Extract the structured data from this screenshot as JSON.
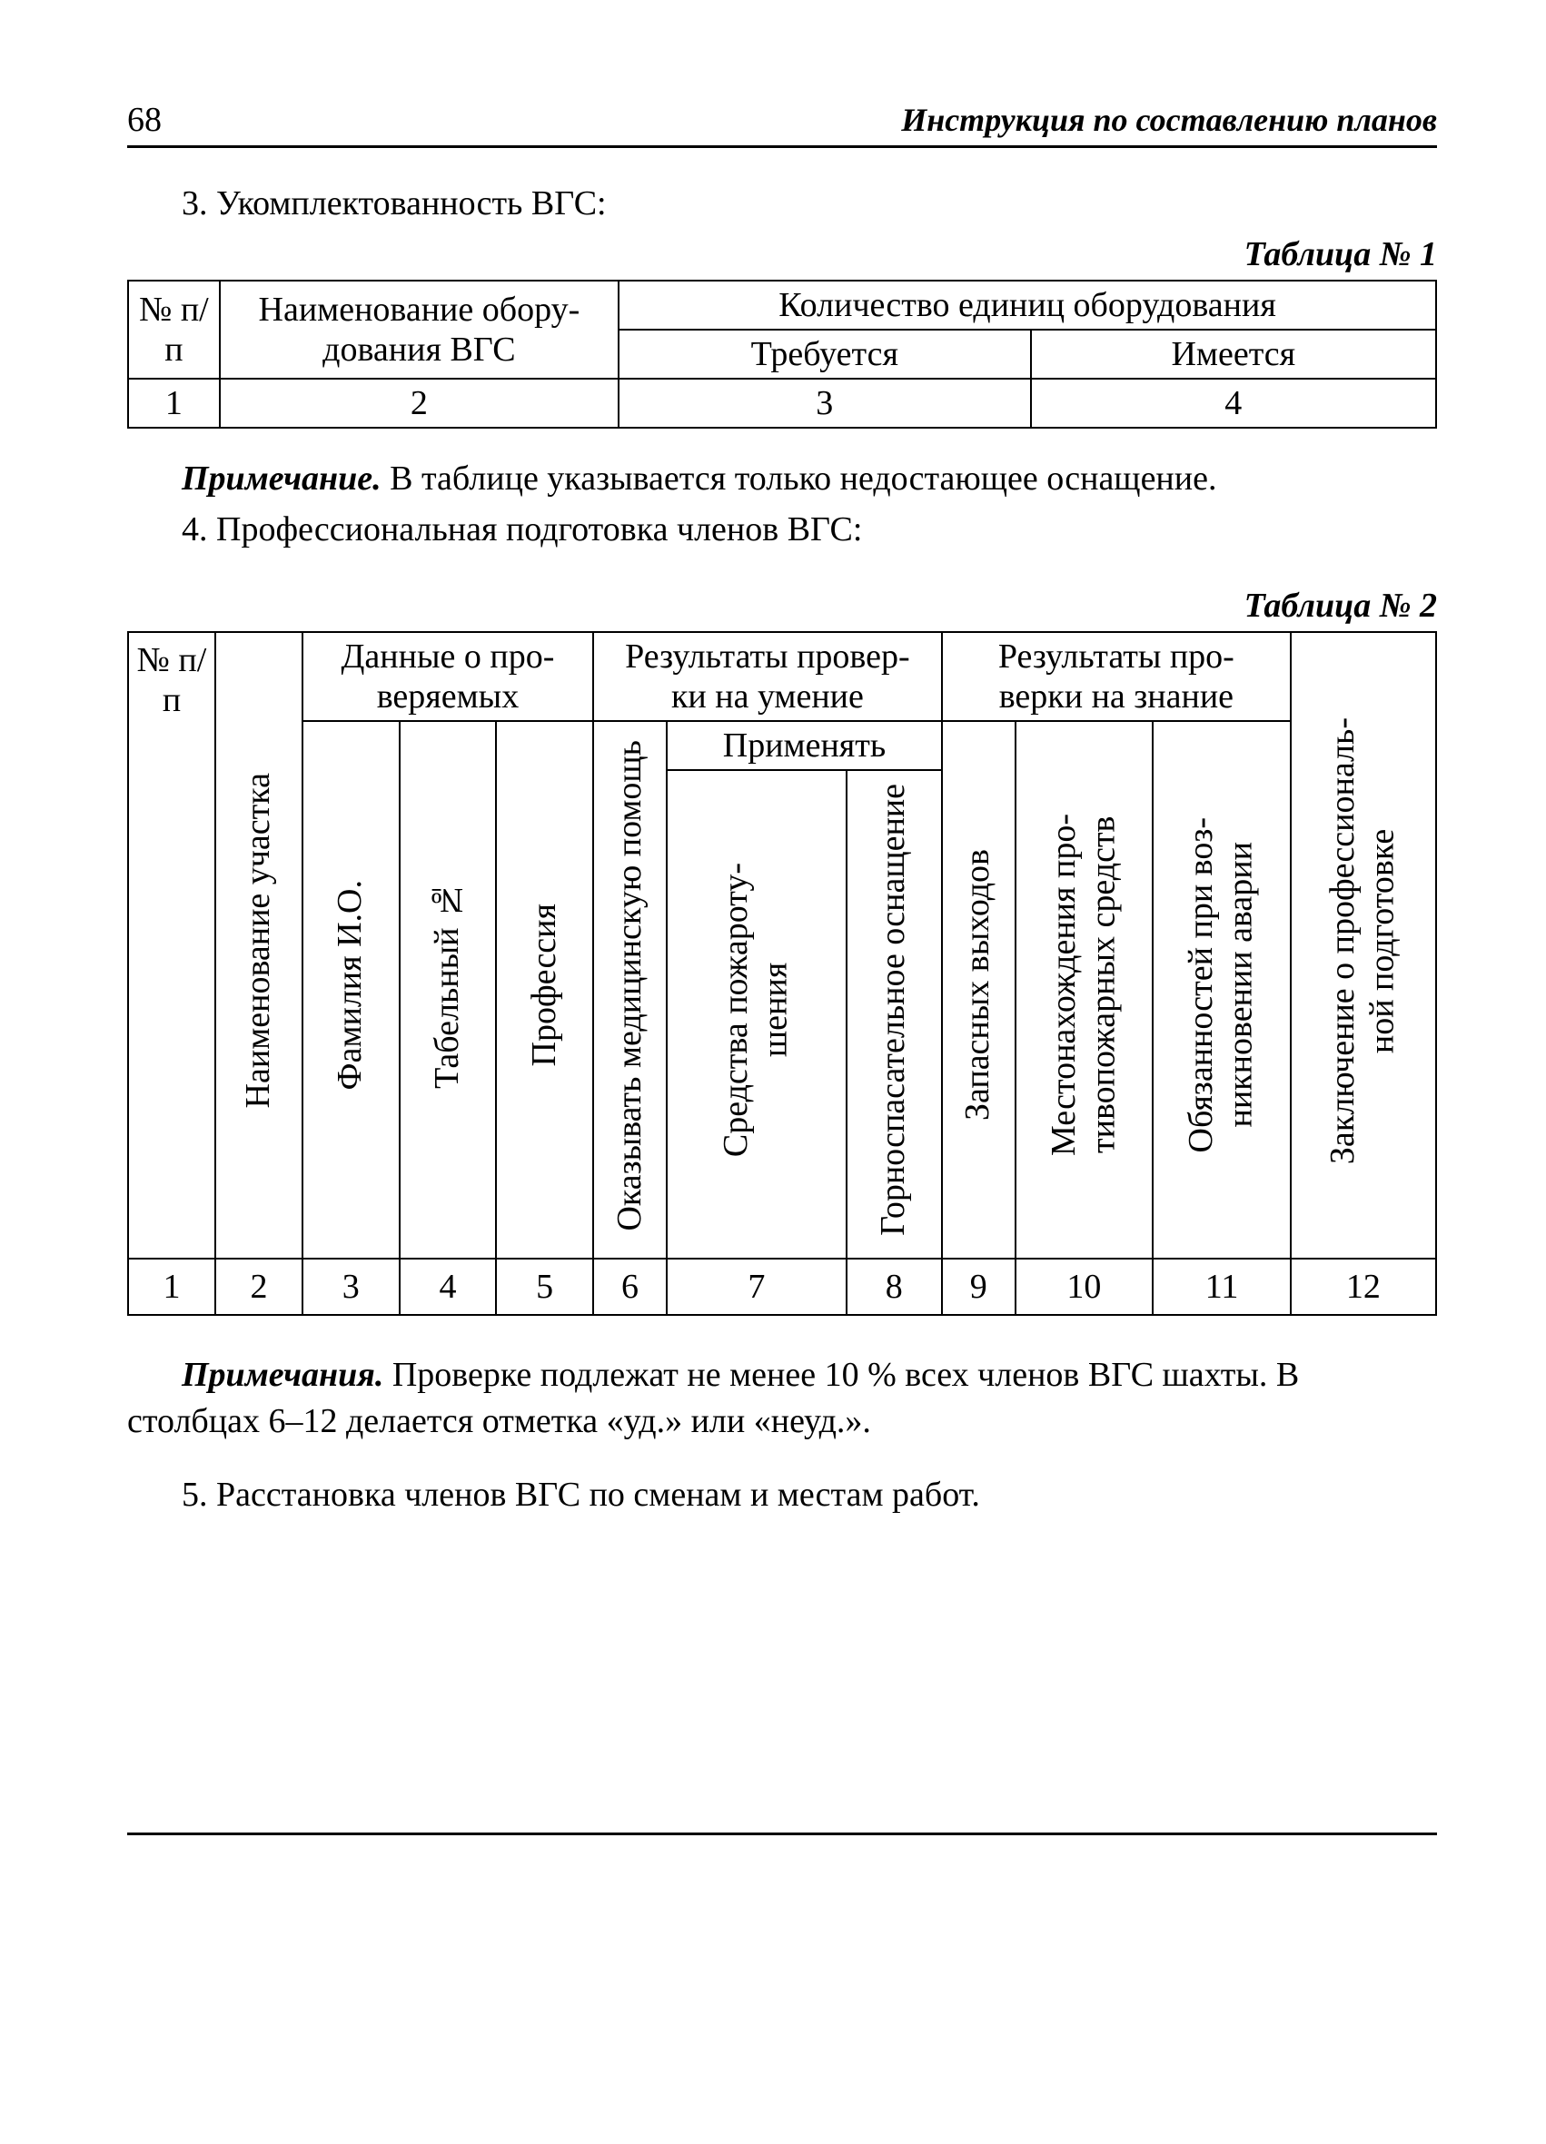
{
  "page": {
    "number": "68",
    "running_title": "Инструкция по составлению планов"
  },
  "section3": {
    "heading": "3. Укомплектованность ВГС:"
  },
  "table1": {
    "caption": "Таблица № 1",
    "head": {
      "c1": "№ п/п",
      "c2": "Наименование обору-\nдования ВГС",
      "c_span": "Количество единиц оборудования",
      "c3": "Требуется",
      "c4": "Имеется"
    },
    "row": {
      "c1": "1",
      "c2": "2",
      "c3": "3",
      "c4": "4"
    }
  },
  "note1": {
    "label": "Примечание.",
    "text": " В таблице указывается только недостающее оснащение."
  },
  "section4": {
    "heading": "4. Профессиональная подготовка членов ВГС:"
  },
  "table2": {
    "caption": "Таблица № 2",
    "head": {
      "c1": "№ п/п",
      "c2": "Наименование участка",
      "g_data": "Данные о про-\nверяемых",
      "c3": "Фамилия И.О.",
      "c4": "Табельный №",
      "c5": "Профессия",
      "g_skill": "Результаты провер-\nки на умение",
      "c6": "Оказывать медицинскую помощь",
      "g_apply": "Применять",
      "c7": "Средства пожароту-\nшения",
      "c8": "Горноспасательное оснащение",
      "g_know": "Результаты про-\nверки на знание",
      "c9": "Запасных выходов",
      "c10": "Местонахождения про-\nтивопожарных средств",
      "c11": "Обязанностей при воз-\nникновении аварии",
      "c12": "Заключение о профессиональ-\nной подготовке"
    },
    "row": {
      "c1": "1",
      "c2": "2",
      "c3": "3",
      "c4": "4",
      "c5": "5",
      "c6": "6",
      "c7": "7",
      "c8": "8",
      "c9": "9",
      "c10": "10",
      "c11": "11",
      "c12": "12"
    }
  },
  "note2": {
    "label": "Примечания.",
    "text": " Проверке подлежат не менее 10  % всех членов ВГС шахты. В столбцах 6–12 делается отметка «уд.» или «неуд.»."
  },
  "section5": {
    "heading": "5. Расстановка членов ВГС по сменам и местам работ."
  },
  "colors": {
    "text": "#000000",
    "background": "#ffffff",
    "border": "#000000"
  },
  "typography": {
    "body_font_family": "Times New Roman",
    "body_font_size_pt": 28,
    "caption_style": "bold italic"
  }
}
